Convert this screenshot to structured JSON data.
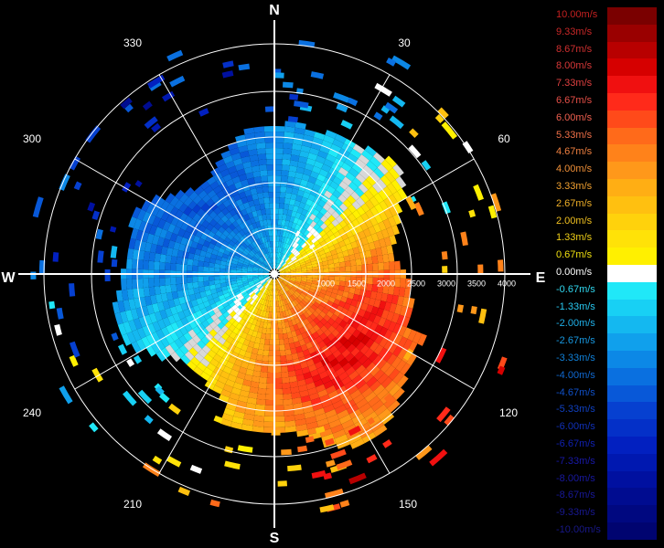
{
  "chart_data": {
    "type": "polar_velocity_ppi",
    "compass": {
      "north": "N",
      "east": "E",
      "south": "S",
      "west": "W"
    },
    "azimuth_labels": [
      "30",
      "60",
      "120",
      "150",
      "210",
      "240",
      "300",
      "330"
    ],
    "range_labels": [
      "1000",
      "1500",
      "2000",
      "2500",
      "3000",
      "3500",
      "4000"
    ],
    "color_scale": [
      {
        "label": "10.00m/s",
        "value": 10.0,
        "color": "#7a0000",
        "text_color": "#c42020"
      },
      {
        "label": "9.33m/s",
        "value": 9.33,
        "color": "#9a0000",
        "text_color": "#c82828"
      },
      {
        "label": "8.67m/s",
        "value": 8.67,
        "color": "#b80000",
        "text_color": "#d03030"
      },
      {
        "label": "8.00m/s",
        "value": 8.0,
        "color": "#d60000",
        "text_color": "#d83838"
      },
      {
        "label": "7.33m/s",
        "value": 7.33,
        "color": "#f01010",
        "text_color": "#e04040"
      },
      {
        "label": "6.67m/s",
        "value": 6.67,
        "color": "#ff2a1a",
        "text_color": "#e85048"
      },
      {
        "label": "6.00m/s",
        "value": 6.0,
        "color": "#ff4a1a",
        "text_color": "#f06050"
      },
      {
        "label": "5.33m/s",
        "value": 5.33,
        "color": "#ff6a1a",
        "text_color": "#f07048"
      },
      {
        "label": "4.67m/s",
        "value": 4.67,
        "color": "#ff821a",
        "text_color": "#f08040"
      },
      {
        "label": "4.00m/s",
        "value": 4.0,
        "color": "#ff981a",
        "text_color": "#f09038"
      },
      {
        "label": "3.33m/s",
        "value": 3.33,
        "color": "#ffae14",
        "text_color": "#f0a030"
      },
      {
        "label": "2.67m/s",
        "value": 2.67,
        "color": "#ffc010",
        "text_color": "#f0b028"
      },
      {
        "label": "2.00m/s",
        "value": 2.0,
        "color": "#ffd20c",
        "text_color": "#f0c020"
      },
      {
        "label": "1.33m/s",
        "value": 1.33,
        "color": "#ffe208",
        "text_color": "#f0d018"
      },
      {
        "label": "0.67m/s",
        "value": 0.67,
        "color": "#fff000",
        "text_color": "#f0e010"
      },
      {
        "label": "0.00m/s",
        "value": 0.0,
        "color": "#ffffff",
        "text_color": "#ffffff"
      },
      {
        "label": "-0.67m/s",
        "value": -0.67,
        "color": "#20e8f8",
        "text_color": "#30d8f0"
      },
      {
        "label": "-1.33m/s",
        "value": -1.33,
        "color": "#18d0f4",
        "text_color": "#28c8f0"
      },
      {
        "label": "-2.00m/s",
        "value": -2.0,
        "color": "#14b8f0",
        "text_color": "#20b0e8"
      },
      {
        "label": "-2.67m/s",
        "value": -2.67,
        "color": "#10a0ec",
        "text_color": "#1898e0"
      },
      {
        "label": "-3.33m/s",
        "value": -3.33,
        "color": "#0c88e6",
        "text_color": "#1080d8"
      },
      {
        "label": "-4.00m/s",
        "value": -4.0,
        "color": "#0a70e0",
        "text_color": "#1068d0"
      },
      {
        "label": "-4.67m/s",
        "value": -4.67,
        "color": "#0858d8",
        "text_color": "#1050c8"
      },
      {
        "label": "-5.33m/s",
        "value": -5.33,
        "color": "#0640d0",
        "text_color": "#1040c0"
      },
      {
        "label": "-6.00m/s",
        "value": -6.0,
        "color": "#0430c8",
        "text_color": "#1030b8"
      },
      {
        "label": "-6.67m/s",
        "value": -6.67,
        "color": "#0220c0",
        "text_color": "#1020b0"
      },
      {
        "label": "-7.33m/s",
        "value": -7.33,
        "color": "#0018b0",
        "text_color": "#1818a8"
      },
      {
        "label": "-8.00m/s",
        "value": -8.0,
        "color": "#0010a0",
        "text_color": "#1818a0"
      },
      {
        "label": "-8.67m/s",
        "value": -8.67,
        "color": "#000c90",
        "text_color": "#181898"
      },
      {
        "label": "-9.33m/s",
        "value": -9.33,
        "color": "#000880",
        "text_color": "#181890"
      },
      {
        "label": "-10.00m/s",
        "value": -10.0,
        "color": "#000470",
        "text_color": "#181888"
      }
    ],
    "field": {
      "description_rule": "radial velocity: positive toward SE, negative toward NW, zero line ~ E-NE to W-SW",
      "peak_positive_ms": 7.5,
      "peak_negative_ms": -4.5,
      "max_range_m": 2600
    },
    "grid": true
  }
}
